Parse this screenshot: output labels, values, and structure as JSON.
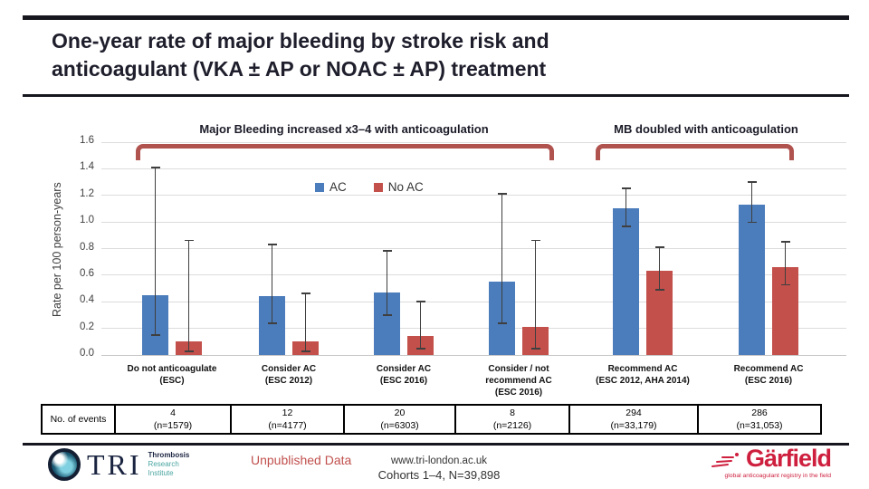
{
  "slide": {
    "title": "One-year rate of major bleeding by stroke risk and\nanticoagulant (VKA ± AP or NOAC ± AP) treatment"
  },
  "annotations": {
    "left": "Major Bleeding increased x3–4 with anticoagulation",
    "right": "MB doubled with anticoagulation"
  },
  "colors": {
    "dark_navy": "#16161f",
    "bracket_red": "#b0524e",
    "ac_blue": "#4b7cbb",
    "no_ac_red": "#c3504b",
    "unpublished_red": "#c0504d",
    "garfield_red": "#ce203e",
    "tri_teal": "#4aa5a0",
    "tri_navy": "#1a2440"
  },
  "chart_data": {
    "type": "bar",
    "title": "",
    "xlabel": "",
    "ylabel": "Rate per 100 person-years",
    "ylim": [
      0,
      1.6
    ],
    "ytick_step": 0.2,
    "grid": true,
    "legend_position": "inside-top-center",
    "categories": [
      "Do not anticoagulate\n(ESC)",
      "Consider AC\n(ESC 2012)",
      "Consider AC\n(ESC 2016)",
      "Consider / not\nrecommend AC\n(ESC 2016)",
      "Recommend AC\n(ESC 2012, AHA 2014)",
      "Recommend AC\n(ESC 2016)"
    ],
    "series": [
      {
        "name": "AC",
        "color": "#4b7cbb",
        "values": [
          0.45,
          0.44,
          0.47,
          0.55,
          1.1,
          1.13
        ],
        "ci_low": [
          0.15,
          0.24,
          0.3,
          0.24,
          0.97,
          1.0
        ],
        "ci_high": [
          1.41,
          0.83,
          0.78,
          1.21,
          1.25,
          1.3
        ]
      },
      {
        "name": "No AC",
        "color": "#c3504b",
        "values": [
          0.1,
          0.1,
          0.14,
          0.21,
          0.63,
          0.66
        ],
        "ci_low": [
          0.03,
          0.03,
          0.05,
          0.05,
          0.49,
          0.53
        ],
        "ci_high": [
          0.86,
          0.46,
          0.4,
          0.86,
          0.81,
          0.85
        ]
      }
    ]
  },
  "events_table": {
    "row_label": "No. of events",
    "cells": [
      {
        "events": "4",
        "n": "(n=1579)"
      },
      {
        "events": "12",
        "n": "(n=4177)"
      },
      {
        "events": "20",
        "n": "(n=6303)"
      },
      {
        "events": "8",
        "n": "(n=2126)"
      },
      {
        "events": "294",
        "n": "(n=33,179)"
      },
      {
        "events": "286",
        "n": "(n=31,053)"
      }
    ]
  },
  "footer": {
    "unpublished": "Unpublished Data",
    "url": "www.tri-london.ac.uk",
    "cohorts": "Cohorts 1–4, N=39,898",
    "tri": {
      "acronym": "TRI",
      "lines": [
        "Thrombosis",
        "Research",
        "Institute"
      ]
    },
    "garfield": {
      "name": "Gärfield",
      "tagline": "global anticoagulant registry in the field"
    }
  }
}
